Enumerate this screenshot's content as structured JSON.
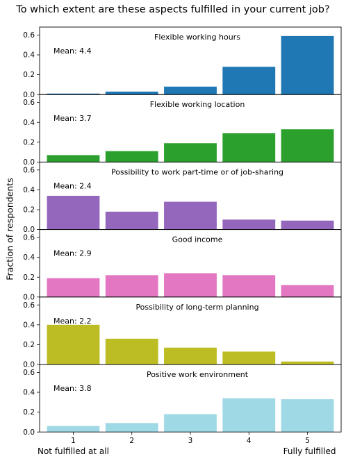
{
  "title": "To which extent are these aspects fulfilled in your current job?",
  "chart_data": {
    "type": "bar",
    "title": "To which extent are these aspects fulfilled in your current job?",
    "ylabel": "Fraction of respondents",
    "categories": [
      "1",
      "2",
      "3",
      "4",
      "5"
    ],
    "x_annotations": [
      "Not fulfilled at all",
      "Fully fulfilled"
    ],
    "ylim": [
      0,
      0.68
    ],
    "yticks": [
      "0.0",
      "0.2",
      "0.4",
      "0.6"
    ],
    "panels": [
      {
        "name": "Flexible working hours",
        "mean_label": "Mean: 4.4",
        "color": "#1f77b4",
        "values": [
          0.01,
          0.03,
          0.08,
          0.28,
          0.59
        ]
      },
      {
        "name": "Flexible working location",
        "mean_label": "Mean: 3.7",
        "color": "#2ca02c",
        "values": [
          0.07,
          0.11,
          0.19,
          0.29,
          0.33
        ]
      },
      {
        "name": "Possibility to work part-time or of job-sharing",
        "mean_label": "Mean: 2.4",
        "color": "#9467bd",
        "values": [
          0.34,
          0.18,
          0.28,
          0.1,
          0.09
        ]
      },
      {
        "name": "Good income",
        "mean_label": "Mean: 2.9",
        "color": "#e377c2",
        "values": [
          0.19,
          0.22,
          0.24,
          0.22,
          0.12
        ]
      },
      {
        "name": "Possibility of long-term planning",
        "mean_label": "Mean: 2.2",
        "color": "#bcbd22",
        "values": [
          0.4,
          0.26,
          0.17,
          0.13,
          0.03
        ]
      },
      {
        "name": "Positive work environment",
        "mean_label": "Mean: 3.8",
        "color": "#a0d9e6",
        "values": [
          0.06,
          0.09,
          0.18,
          0.34,
          0.33
        ]
      }
    ]
  }
}
